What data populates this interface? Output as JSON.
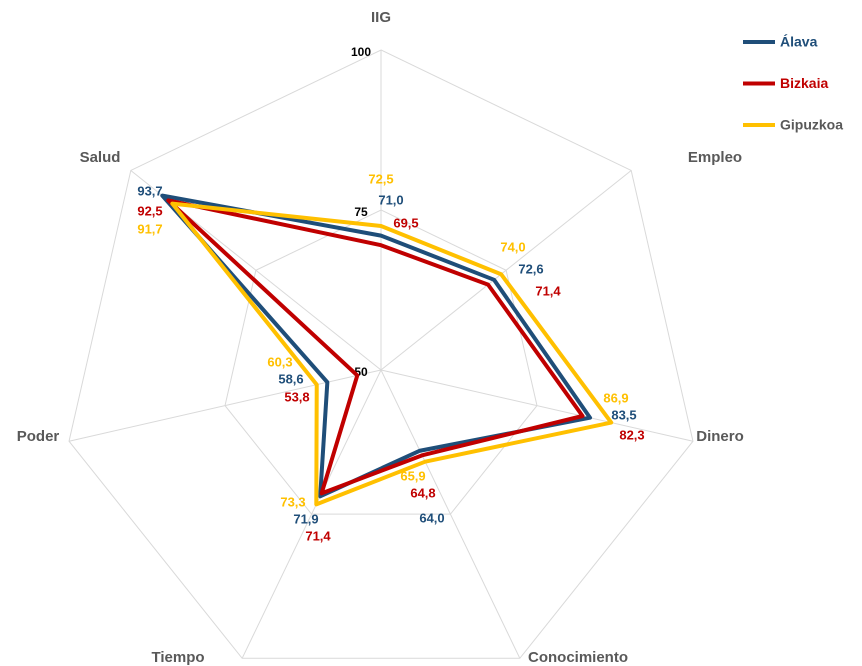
{
  "chart_data": {
    "type": "radar",
    "categories": [
      "IIG",
      "Empleo",
      "Dinero",
      "Conocimiento",
      "Tiempo",
      "Poder",
      "Salud"
    ],
    "series": [
      {
        "name": "Álava",
        "color": "#1f4e79",
        "values": [
          71.0,
          72.6,
          83.5,
          64.0,
          71.9,
          58.6,
          93.7
        ],
        "value_labels": [
          "71,0",
          "72,6",
          "83,5",
          "64,0",
          "71,9",
          "58,6",
          "93,7"
        ]
      },
      {
        "name": "Bizkaia",
        "color": "#c00000",
        "values": [
          69.5,
          71.4,
          82.3,
          64.8,
          71.4,
          53.8,
          92.5
        ],
        "value_labels": [
          "69,5",
          "71,4",
          "82,3",
          "64,8",
          "71,4",
          "53,8",
          "92,5"
        ]
      },
      {
        "name": "Gipuzkoa",
        "color": "#ffc000",
        "values": [
          72.5,
          74.0,
          86.9,
          65.9,
          73.3,
          60.3,
          91.7
        ],
        "value_labels": [
          "72,5",
          "74,0",
          "86,9",
          "65,9",
          "73,3",
          "60,3",
          "91,7"
        ]
      }
    ],
    "rlim": [
      50,
      100
    ],
    "rticks": [
      50,
      75,
      100
    ],
    "grid": true,
    "legend": "top-right"
  }
}
